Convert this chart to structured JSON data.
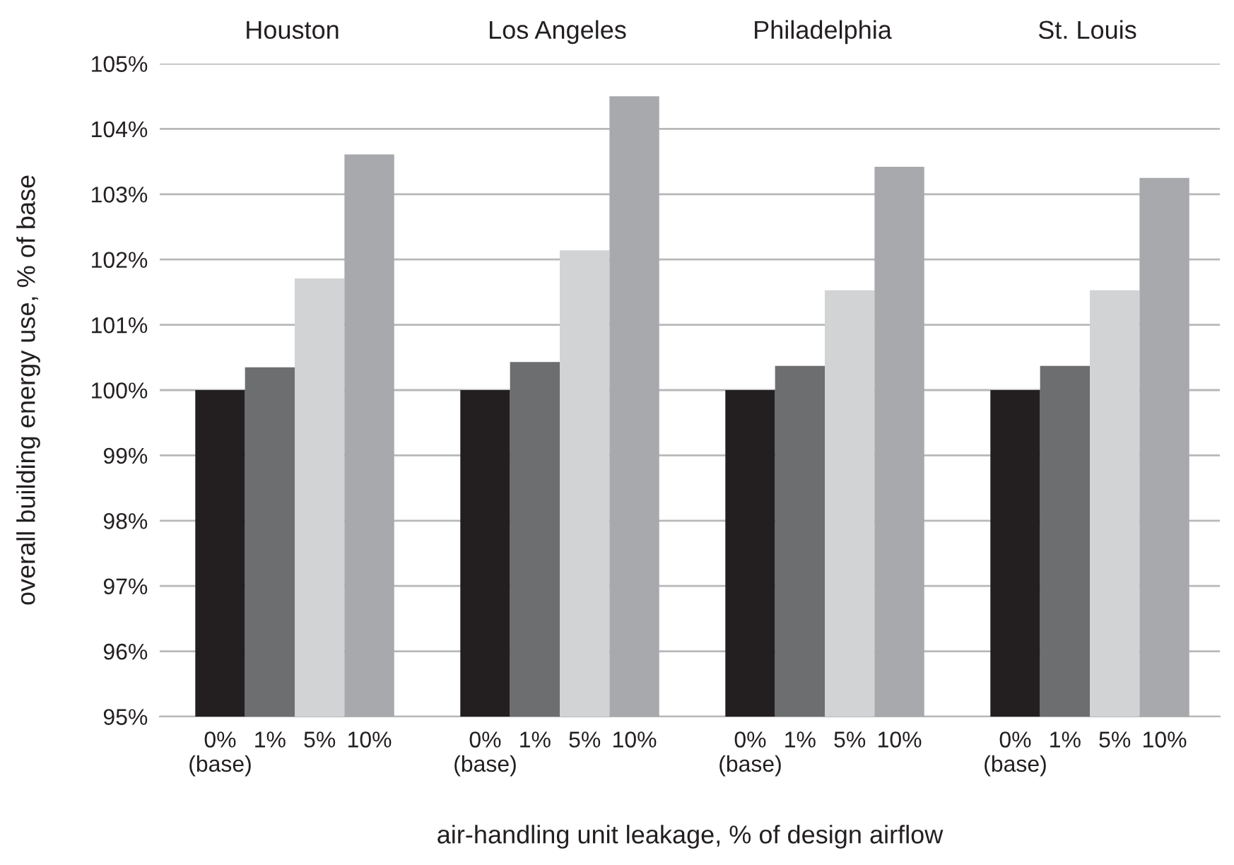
{
  "chart_data": {
    "type": "bar",
    "ylabel": "overall building energy use, % of base",
    "xlabel": "air-handling unit leakage, % of design airflow",
    "categories": [
      "Houston",
      "Los Angeles",
      "Philadelphia",
      "St. Louis"
    ],
    "series": [
      {
        "name": "0%\n(base)",
        "color": "#231f20",
        "values": [
          100,
          100,
          100,
          100
        ]
      },
      {
        "name": "1%",
        "color": "#6d6e70",
        "values": [
          100.35,
          100.43,
          100.37,
          100.37
        ]
      },
      {
        "name": "5%",
        "color": "#d1d3d4",
        "values": [
          101.71,
          102.14,
          101.53,
          101.53
        ]
      },
      {
        "name": "10%",
        "color": "#a7a9ac",
        "values": [
          103.61,
          104.5,
          103.42,
          103.25
        ]
      }
    ],
    "ylim": [
      95,
      105
    ],
    "yticks": [
      {
        "value": 95,
        "label": "95%"
      },
      {
        "value": 96,
        "label": "96%"
      },
      {
        "value": 97,
        "label": "97%"
      },
      {
        "value": 98,
        "label": "98%"
      },
      {
        "value": 99,
        "label": "99%"
      },
      {
        "value": 100,
        "label": "100%"
      },
      {
        "value": 101,
        "label": "101%"
      },
      {
        "value": 102,
        "label": "102%"
      },
      {
        "value": 103,
        "label": "103%"
      },
      {
        "value": 104,
        "label": "104%"
      },
      {
        "value": 105,
        "label": "105%"
      }
    ],
    "grid": "y"
  }
}
